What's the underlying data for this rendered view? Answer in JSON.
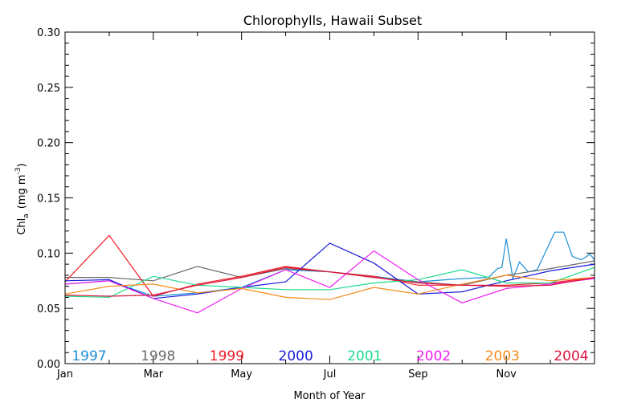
{
  "chart_data": {
    "type": "line",
    "title": "Chlorophylls, Hawaii Subset",
    "xlabel": "Month of Year",
    "ylabel_main": "Chl",
    "ylabel_sub": "a",
    "ylabel_unit": "(mg m",
    "ylabel_exp": "-3",
    "ylabel_close": ")",
    "xlim": [
      1,
      13
    ],
    "ylim": [
      0,
      0.3
    ],
    "x_ticks": [
      {
        "value": 1,
        "label": "Jan"
      },
      {
        "value": 3,
        "label": "Mar"
      },
      {
        "value": 5,
        "label": "May"
      },
      {
        "value": 7,
        "label": "Jul"
      },
      {
        "value": 9,
        "label": "Sep"
      },
      {
        "value": 11,
        "label": "Nov"
      }
    ],
    "y_ticks": [
      {
        "value": 0.0,
        "label": "0.00"
      },
      {
        "value": 0.05,
        "label": "0.05"
      },
      {
        "value": 0.1,
        "label": "0.10"
      },
      {
        "value": 0.15,
        "label": "0.15"
      },
      {
        "value": 0.2,
        "label": "0.20"
      },
      {
        "value": 0.25,
        "label": "0.25"
      },
      {
        "value": 0.3,
        "label": "0.30"
      }
    ],
    "legend_placement": "bottom inside plot",
    "series": [
      {
        "name": "1997",
        "color": "#1e8fd6",
        "x": [
          1,
          2,
          3,
          4,
          5,
          6,
          7,
          8,
          9,
          10,
          10.6,
          10.8,
          10.9,
          11.0,
          11.15,
          11.3,
          11.5,
          11.7,
          11.9,
          12.1,
          12.3,
          12.5,
          12.7,
          12.9,
          13
        ],
        "y": [
          0.072,
          0.075,
          0.061,
          0.064,
          0.069,
          0.085,
          0.083,
          0.079,
          0.074,
          0.077,
          0.078,
          0.086,
          0.087,
          0.113,
          0.077,
          0.092,
          0.083,
          0.085,
          0.102,
          0.119,
          0.119,
          0.097,
          0.094,
          0.099,
          0.094
        ]
      },
      {
        "name": "1998",
        "color": "#6b6b6b",
        "x": [
          1,
          2,
          3,
          4,
          5,
          6,
          7,
          8,
          9,
          10,
          11,
          12,
          13
        ],
        "y": [
          0.078,
          0.078,
          0.075,
          0.088,
          0.078,
          0.086,
          0.083,
          0.078,
          0.074,
          0.071,
          0.08,
          0.086,
          0.093
        ]
      },
      {
        "name": "1999",
        "color": "#ee1c25",
        "x": [
          1,
          2,
          3,
          4,
          5,
          6,
          7,
          8,
          9,
          10,
          11,
          12,
          13
        ],
        "y": [
          0.074,
          0.116,
          0.061,
          0.072,
          0.079,
          0.088,
          0.083,
          0.079,
          0.071,
          0.071,
          0.071,
          0.073,
          0.078
        ]
      },
      {
        "name": "2000",
        "color": "#1a1adb",
        "x": [
          1,
          2,
          3,
          4,
          5,
          6,
          7,
          8,
          9,
          10,
          11,
          12,
          13
        ],
        "y": [
          0.075,
          0.076,
          0.059,
          0.063,
          0.069,
          0.074,
          0.109,
          0.091,
          0.063,
          0.065,
          0.075,
          0.084,
          0.09
        ]
      },
      {
        "name": "2001",
        "color": "#1edc8c",
        "x": [
          1,
          2,
          3,
          4,
          5,
          6,
          7,
          8,
          9,
          10,
          11,
          12,
          13
        ],
        "y": [
          0.061,
          0.06,
          0.079,
          0.071,
          0.069,
          0.067,
          0.067,
          0.073,
          0.076,
          0.085,
          0.073,
          0.073,
          0.087
        ]
      },
      {
        "name": "2002",
        "color": "#f01ef0",
        "x": [
          1,
          2,
          3,
          4,
          5,
          6,
          7,
          8,
          9,
          10,
          11,
          12,
          13
        ],
        "y": [
          0.072,
          0.075,
          0.059,
          0.046,
          0.068,
          0.085,
          0.069,
          0.102,
          0.076,
          0.055,
          0.068,
          0.072,
          0.077
        ]
      },
      {
        "name": "2003",
        "color": "#f58a19",
        "x": [
          1,
          2,
          3,
          4,
          5,
          6,
          7,
          8,
          9,
          10,
          11,
          12,
          13
        ],
        "y": [
          0.063,
          0.07,
          0.072,
          0.064,
          0.068,
          0.06,
          0.058,
          0.069,
          0.063,
          0.072,
          0.08,
          0.075,
          0.078
        ]
      },
      {
        "name": "2004",
        "color": "#dc143c",
        "x": [
          1,
          2,
          3,
          4,
          5,
          6,
          7,
          8,
          9,
          10,
          11,
          12,
          13
        ],
        "y": [
          0.062,
          0.061,
          0.062,
          0.071,
          0.078,
          0.087,
          0.083,
          0.078,
          0.073,
          0.071,
          0.07,
          0.071,
          0.078
        ]
      }
    ]
  }
}
